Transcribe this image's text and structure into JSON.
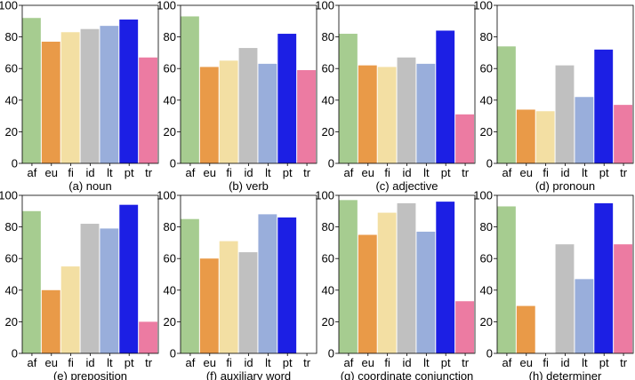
{
  "chart_data": [
    {
      "type": "bar",
      "title": "(a) noun",
      "categories": [
        "af",
        "eu",
        "fi",
        "id",
        "lt",
        "pt",
        "tr"
      ],
      "values": [
        92,
        77,
        83,
        85,
        87,
        91,
        67
      ],
      "ylim": [
        0,
        100
      ],
      "yticks": [
        0,
        20,
        40,
        60,
        80,
        100
      ],
      "xlabel": "",
      "ylabel": ""
    },
    {
      "type": "bar",
      "title": "(b) verb",
      "categories": [
        "af",
        "eu",
        "fi",
        "id",
        "lt",
        "pt",
        "tr"
      ],
      "values": [
        93,
        61,
        65,
        73,
        63,
        82,
        59
      ],
      "ylim": [
        0,
        100
      ],
      "yticks": [
        0,
        20,
        40,
        60,
        80,
        100
      ],
      "xlabel": "",
      "ylabel": ""
    },
    {
      "type": "bar",
      "title": "(c) adjective",
      "categories": [
        "af",
        "eu",
        "fi",
        "id",
        "lt",
        "pt",
        "tr"
      ],
      "values": [
        82,
        62,
        61,
        67,
        63,
        84,
        31
      ],
      "ylim": [
        0,
        100
      ],
      "yticks": [
        0,
        20,
        40,
        60,
        80,
        100
      ],
      "xlabel": "",
      "ylabel": ""
    },
    {
      "type": "bar",
      "title": "(d) pronoun",
      "categories": [
        "af",
        "eu",
        "fi",
        "id",
        "lt",
        "pt",
        "tr"
      ],
      "values": [
        74,
        34,
        33,
        62,
        42,
        72,
        37
      ],
      "ylim": [
        0,
        100
      ],
      "yticks": [
        0,
        20,
        40,
        60,
        80,
        100
      ],
      "xlabel": "",
      "ylabel": ""
    },
    {
      "type": "bar",
      "title": "(e) preposition",
      "categories": [
        "af",
        "eu",
        "fi",
        "id",
        "lt",
        "pt",
        "tr"
      ],
      "values": [
        90,
        40,
        55,
        82,
        79,
        94,
        20
      ],
      "ylim": [
        0,
        100
      ],
      "yticks": [
        0,
        20,
        40,
        60,
        80,
        100
      ],
      "xlabel": "",
      "ylabel": ""
    },
    {
      "type": "bar",
      "title": "(f) auxiliary word",
      "categories": [
        "af",
        "eu",
        "fi",
        "id",
        "lt",
        "pt",
        "tr"
      ],
      "values": [
        85,
        60,
        71,
        64,
        88,
        86,
        0
      ],
      "ylim": [
        0,
        100
      ],
      "yticks": [
        0,
        20,
        40,
        60,
        80,
        100
      ],
      "xlabel": "",
      "ylabel": ""
    },
    {
      "type": "bar",
      "title": "(g) coordinate conjunction",
      "categories": [
        "af",
        "eu",
        "fi",
        "id",
        "lt",
        "pt",
        "tr"
      ],
      "values": [
        97,
        75,
        89,
        95,
        77,
        96,
        33
      ],
      "ylim": [
        0,
        100
      ],
      "yticks": [
        0,
        20,
        40,
        60,
        80,
        100
      ],
      "xlabel": "",
      "ylabel": ""
    },
    {
      "type": "bar",
      "title": "(h) determiner",
      "categories": [
        "af",
        "eu",
        "fi",
        "id",
        "lt",
        "pt",
        "tr"
      ],
      "values": [
        93,
        30,
        0,
        69,
        47,
        95,
        69
      ],
      "ylim": [
        0,
        100
      ],
      "yticks": [
        0,
        20,
        40,
        60,
        80,
        100
      ],
      "xlabel": "",
      "ylabel": ""
    }
  ],
  "colors": {
    "af": "#a6cc90",
    "eu": "#e99a48",
    "fi": "#f3dfa3",
    "id": "#c0c0c0",
    "lt": "#99aedb",
    "pt": "#1c1fe4",
    "tr": "#ec7ba2",
    "axis": "#000000"
  }
}
